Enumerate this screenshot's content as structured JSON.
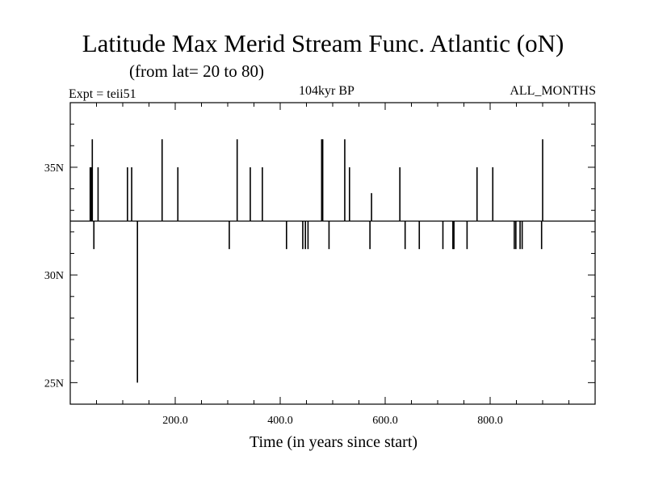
{
  "chart_data": {
    "type": "line",
    "title": "Latitude Max Merid Stream Func. Atlantic (oN)",
    "subtitle": "(from lat= 20 to 80)",
    "annotations": {
      "experiment": "Expt = teii51",
      "period": "104kyr BP",
      "months": "ALL_MONTHS"
    },
    "xlabel": "Time (in years since start)",
    "ylabel": "",
    "xlim": [
      0,
      1000
    ],
    "ylim": [
      24,
      38
    ],
    "x_ticks": [
      200,
      400,
      600,
      800
    ],
    "x_tick_labels": [
      "200.0",
      "400.0",
      "600.0",
      "800.0"
    ],
    "y_ticks": [
      25,
      30,
      35
    ],
    "y_tick_labels": [
      "25N",
      "30N",
      "35N"
    ],
    "baseline": 32.5,
    "grid": false,
    "series": [
      {
        "spikes": [
          {
            "x": 38,
            "y": 35.0
          },
          {
            "x": 40,
            "y": 35.0
          },
          {
            "x": 42,
            "y": 36.3
          },
          {
            "x": 45,
            "y": 31.2
          },
          {
            "x": 53,
            "y": 35.0
          },
          {
            "x": 109,
            "y": 35.0
          },
          {
            "x": 117,
            "y": 35.0
          },
          {
            "x": 128,
            "y": 25.0
          },
          {
            "x": 175,
            "y": 36.3
          },
          {
            "x": 205,
            "y": 35.0
          },
          {
            "x": 303,
            "y": 31.2
          },
          {
            "x": 318,
            "y": 36.3
          },
          {
            "x": 343,
            "y": 35.0
          },
          {
            "x": 366,
            "y": 35.0
          },
          {
            "x": 412,
            "y": 31.2
          },
          {
            "x": 443,
            "y": 31.2
          },
          {
            "x": 448,
            "y": 31.2
          },
          {
            "x": 453,
            "y": 31.2
          },
          {
            "x": 479,
            "y": 36.3
          },
          {
            "x": 481,
            "y": 36.3
          },
          {
            "x": 493,
            "y": 31.2
          },
          {
            "x": 523,
            "y": 36.3
          },
          {
            "x": 532,
            "y": 35.0
          },
          {
            "x": 571,
            "y": 31.2
          },
          {
            "x": 574,
            "y": 33.8
          },
          {
            "x": 628,
            "y": 35.0
          },
          {
            "x": 638,
            "y": 31.2
          },
          {
            "x": 665,
            "y": 31.2
          },
          {
            "x": 710,
            "y": 31.2
          },
          {
            "x": 729,
            "y": 31.2
          },
          {
            "x": 731,
            "y": 31.2
          },
          {
            "x": 756,
            "y": 31.2
          },
          {
            "x": 775,
            "y": 35.0
          },
          {
            "x": 805,
            "y": 35.0
          },
          {
            "x": 846,
            "y": 31.2
          },
          {
            "x": 849,
            "y": 31.2
          },
          {
            "x": 857,
            "y": 31.2
          },
          {
            "x": 861,
            "y": 31.2
          },
          {
            "x": 898,
            "y": 31.2
          },
          {
            "x": 900,
            "y": 36.3
          }
        ]
      }
    ]
  }
}
